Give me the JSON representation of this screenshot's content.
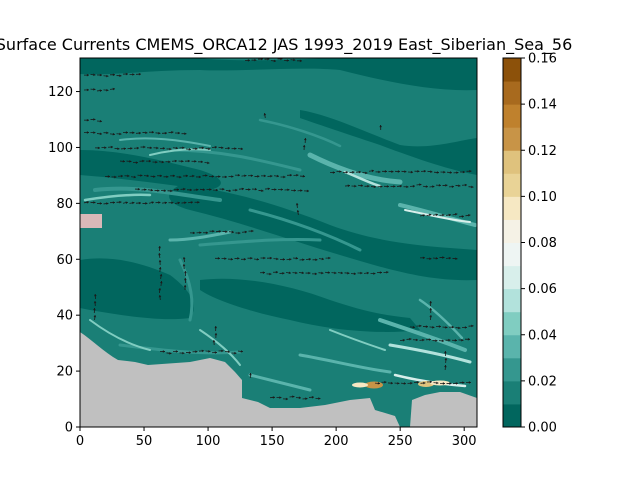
{
  "chart_data": {
    "type": "heatmap",
    "title": "Surface Currents CMEMS_ORCA12 JAS 1993_2019 East_Siberian_Sea_56",
    "xlabel": "",
    "ylabel": "",
    "xlim": [
      0,
      310
    ],
    "ylim": [
      0,
      132
    ],
    "x_ticks": [
      "0",
      "50",
      "100",
      "150",
      "200",
      "250",
      "300"
    ],
    "x_tick_values": [
      0,
      50,
      100,
      150,
      200,
      250,
      300
    ],
    "y_ticks": [
      "0",
      "20",
      "40",
      "60",
      "80",
      "100",
      "120"
    ],
    "y_tick_values": [
      0,
      20,
      40,
      60,
      80,
      100,
      120
    ],
    "colorbar": {
      "min": 0.0,
      "max": 0.16,
      "ticks": [
        "0.00",
        "0.02",
        "0.04",
        "0.06",
        "0.08",
        "0.10",
        "0.12",
        "0.14",
        "0.16"
      ],
      "tick_values": [
        0,
        0.02,
        0.04,
        0.06,
        0.08,
        0.1,
        0.12,
        0.14,
        0.16
      ],
      "colors": [
        "#01665e",
        "#1a7f76",
        "#35978f",
        "#5ab4ac",
        "#80cdc1",
        "#b2e2dc",
        "#d8efeb",
        "#eef5f3",
        "#f5f2e6",
        "#f6e8c3",
        "#e9d396",
        "#dfc27d",
        "#c89447",
        "#bf812d",
        "#a86a1e",
        "#8c510a"
      ]
    },
    "land_color": "#c0c0c0",
    "ocean_base_color": "#1a7f76"
  }
}
